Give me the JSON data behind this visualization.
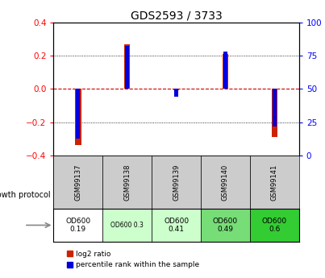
{
  "title": "GDS2593 / 3733",
  "samples": [
    "GSM99137",
    "GSM99138",
    "GSM99139",
    "GSM99140",
    "GSM99141"
  ],
  "log2_ratio": [
    -0.335,
    0.27,
    -0.01,
    0.21,
    -0.29
  ],
  "percentile_rank": [
    13,
    82,
    44,
    78,
    22
  ],
  "ylim_left": [
    -0.4,
    0.4
  ],
  "ylim_right": [
    0,
    100
  ],
  "yticks_left": [
    -0.4,
    -0.2,
    0.0,
    0.2,
    0.4
  ],
  "yticks_right": [
    0,
    25,
    50,
    75,
    100
  ],
  "bar_color_red": "#CC2200",
  "bar_color_blue": "#0000DD",
  "zero_line_color": "#CC0000",
  "protocol_label": "growth protocol",
  "protocol_values": [
    "OD600\n0.19",
    "OD600 0.3",
    "OD600\n0.41",
    "OD600\n0.49",
    "OD600\n0.6"
  ],
  "protocol_colors": [
    "#ffffff",
    "#ccffcc",
    "#ccffcc",
    "#77dd77",
    "#33cc33"
  ],
  "legend_red": "log2 ratio",
  "legend_blue": "percentile rank within the sample",
  "red_bar_width": 0.12,
  "blue_bar_width": 0.08
}
